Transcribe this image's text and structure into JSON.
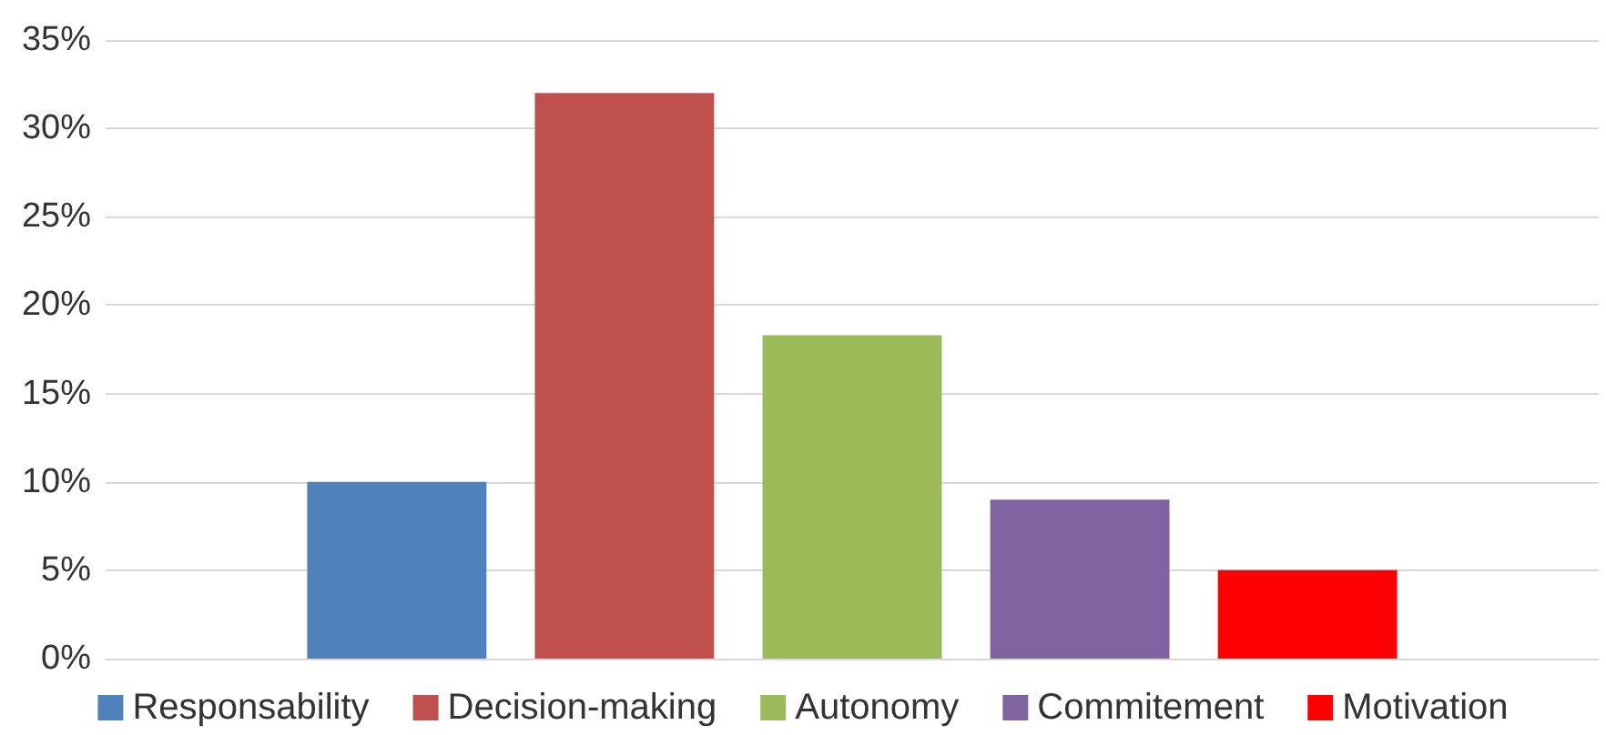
{
  "chart_data": {
    "type": "bar",
    "categories": [
      null
    ],
    "series": [
      {
        "name": "Responsability",
        "color": "#4f81bd",
        "values": [
          10
        ]
      },
      {
        "name": "Decision-making",
        "color": "#c0504d",
        "values": [
          32
        ]
      },
      {
        "name": "Autonomy",
        "color": "#9bbb59",
        "values": [
          18.3
        ]
      },
      {
        "name": "Commitement",
        "color": "#8064a2",
        "values": [
          9
        ]
      },
      {
        "name": "Motivation",
        "color": "#ff0000",
        "values": [
          5
        ]
      }
    ],
    "ylim": [
      0,
      35
    ],
    "yticks": [
      {
        "value": 0,
        "label": "0%"
      },
      {
        "value": 5,
        "label": "5%"
      },
      {
        "value": 10,
        "label": "10%"
      },
      {
        "value": 15,
        "label": "15%"
      },
      {
        "value": 20,
        "label": "20%"
      },
      {
        "value": 25,
        "label": "25%"
      },
      {
        "value": 30,
        "label": "30%"
      },
      {
        "value": 35,
        "label": "35%"
      }
    ],
    "grid": "y",
    "legend": "bottom"
  }
}
